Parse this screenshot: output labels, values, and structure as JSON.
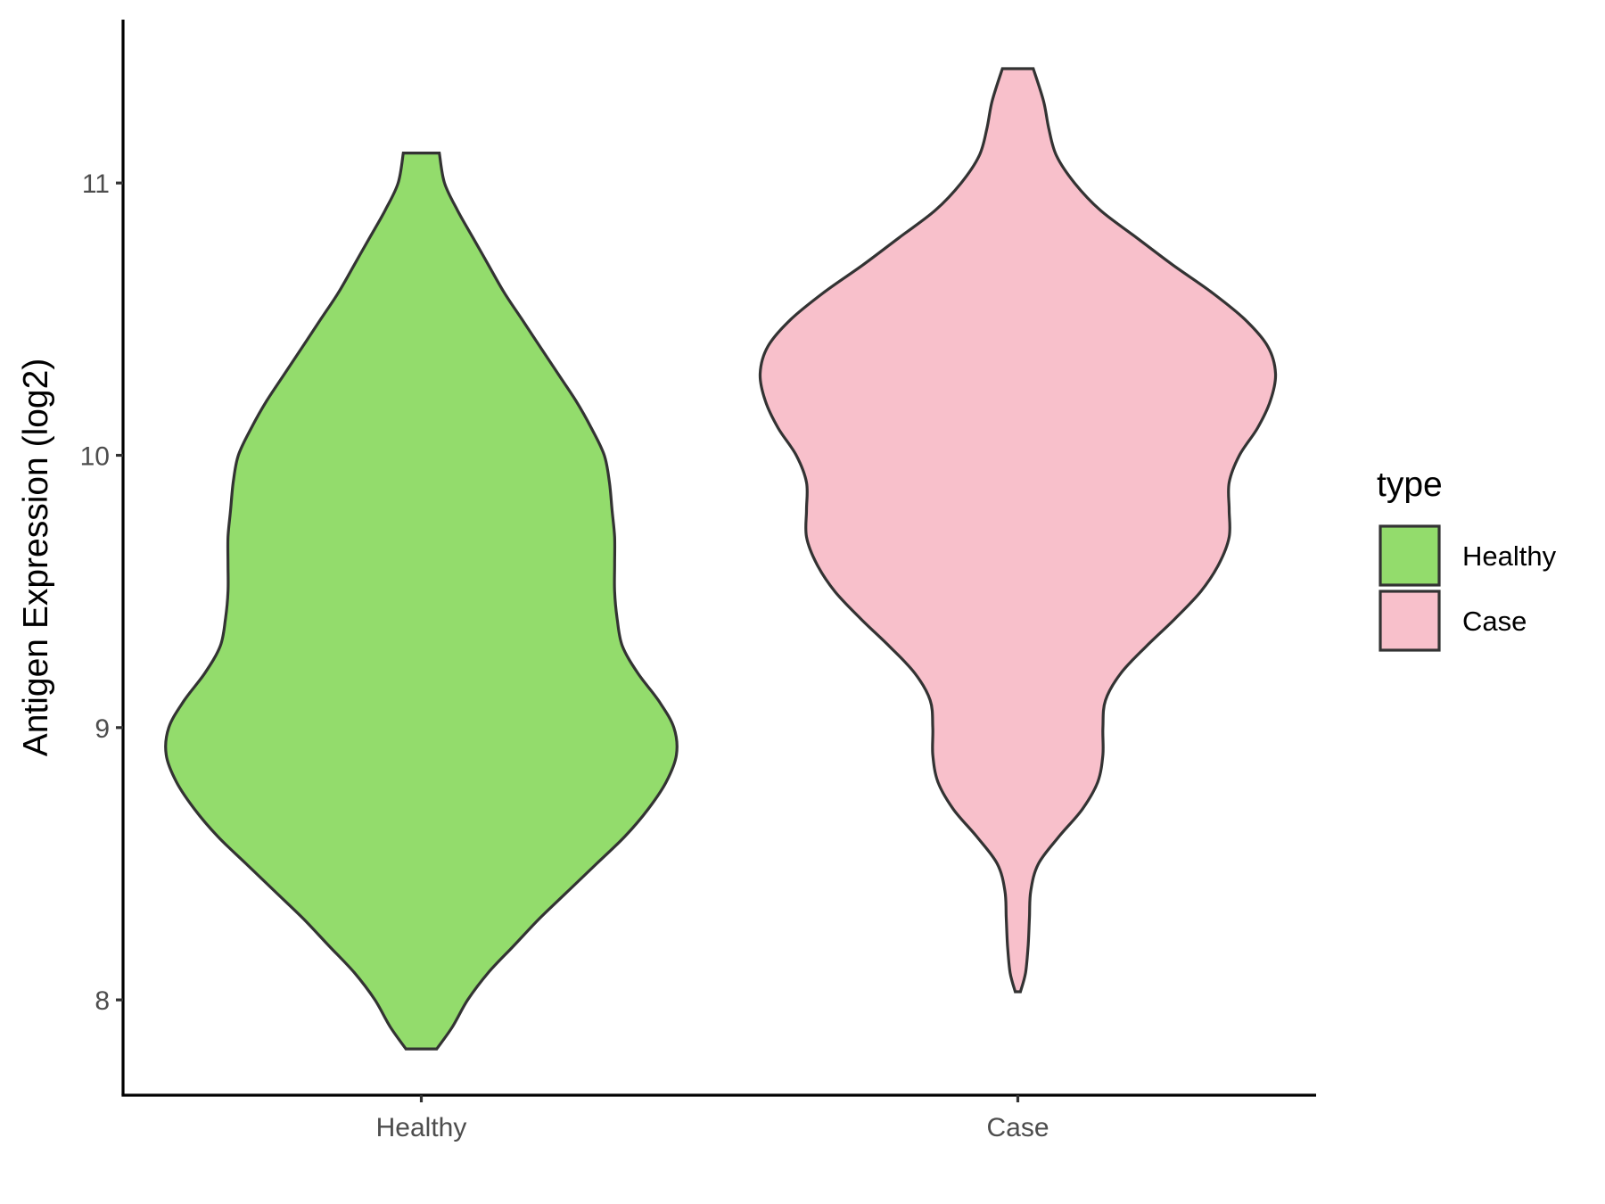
{
  "chart_data": {
    "type": "violin",
    "title": "",
    "xlabel": "",
    "ylabel": "Antigen Expression (log2)",
    "ylim": [
      7.65,
      11.6
    ],
    "yticks": [
      8,
      9,
      10,
      11
    ],
    "categories": [
      "Healthy",
      "Case"
    ],
    "legend": {
      "title": "type",
      "placement": "right",
      "entries": [
        "Healthy",
        "Case"
      ]
    },
    "grid": false,
    "series": [
      {
        "name": "Healthy",
        "color": "#93DC6C",
        "min": 7.82,
        "max": 11.11,
        "profile": [
          [
            7.82,
            0.06
          ],
          [
            7.9,
            0.12
          ],
          [
            8.0,
            0.18
          ],
          [
            8.1,
            0.26
          ],
          [
            8.2,
            0.36
          ],
          [
            8.3,
            0.46
          ],
          [
            8.4,
            0.57
          ],
          [
            8.5,
            0.68
          ],
          [
            8.6,
            0.79
          ],
          [
            8.7,
            0.88
          ],
          [
            8.8,
            0.95
          ],
          [
            8.9,
            0.99
          ],
          [
            9.0,
            0.98
          ],
          [
            9.1,
            0.92
          ],
          [
            9.2,
            0.84
          ],
          [
            9.3,
            0.78
          ],
          [
            9.4,
            0.76
          ],
          [
            9.5,
            0.75
          ],
          [
            9.6,
            0.75
          ],
          [
            9.7,
            0.75
          ],
          [
            9.8,
            0.74
          ],
          [
            9.9,
            0.73
          ],
          [
            10.0,
            0.71
          ],
          [
            10.1,
            0.66
          ],
          [
            10.2,
            0.6
          ],
          [
            10.3,
            0.53
          ],
          [
            10.4,
            0.46
          ],
          [
            10.5,
            0.39
          ],
          [
            10.6,
            0.32
          ],
          [
            10.7,
            0.26
          ],
          [
            10.8,
            0.2
          ],
          [
            10.9,
            0.14
          ],
          [
            11.0,
            0.09
          ],
          [
            11.11,
            0.07
          ]
        ]
      },
      {
        "name": "Case",
        "color": "#F8C0CB",
        "min": 8.03,
        "max": 11.42,
        "profile": [
          [
            8.03,
            0.01
          ],
          [
            8.1,
            0.03
          ],
          [
            8.2,
            0.04
          ],
          [
            8.3,
            0.045
          ],
          [
            8.4,
            0.05
          ],
          [
            8.5,
            0.08
          ],
          [
            8.6,
            0.16
          ],
          [
            8.7,
            0.25
          ],
          [
            8.8,
            0.31
          ],
          [
            8.9,
            0.33
          ],
          [
            9.0,
            0.33
          ],
          [
            9.1,
            0.34
          ],
          [
            9.2,
            0.4
          ],
          [
            9.3,
            0.5
          ],
          [
            9.4,
            0.61
          ],
          [
            9.5,
            0.71
          ],
          [
            9.6,
            0.78
          ],
          [
            9.7,
            0.82
          ],
          [
            9.8,
            0.82
          ],
          [
            9.9,
            0.82
          ],
          [
            10.0,
            0.86
          ],
          [
            10.1,
            0.93
          ],
          [
            10.2,
            0.98
          ],
          [
            10.3,
            1.0
          ],
          [
            10.4,
            0.97
          ],
          [
            10.5,
            0.88
          ],
          [
            10.6,
            0.75
          ],
          [
            10.7,
            0.6
          ],
          [
            10.8,
            0.46
          ],
          [
            10.9,
            0.32
          ],
          [
            11.0,
            0.22
          ],
          [
            11.1,
            0.15
          ],
          [
            11.2,
            0.12
          ],
          [
            11.3,
            0.1
          ],
          [
            11.42,
            0.06
          ]
        ]
      }
    ]
  }
}
